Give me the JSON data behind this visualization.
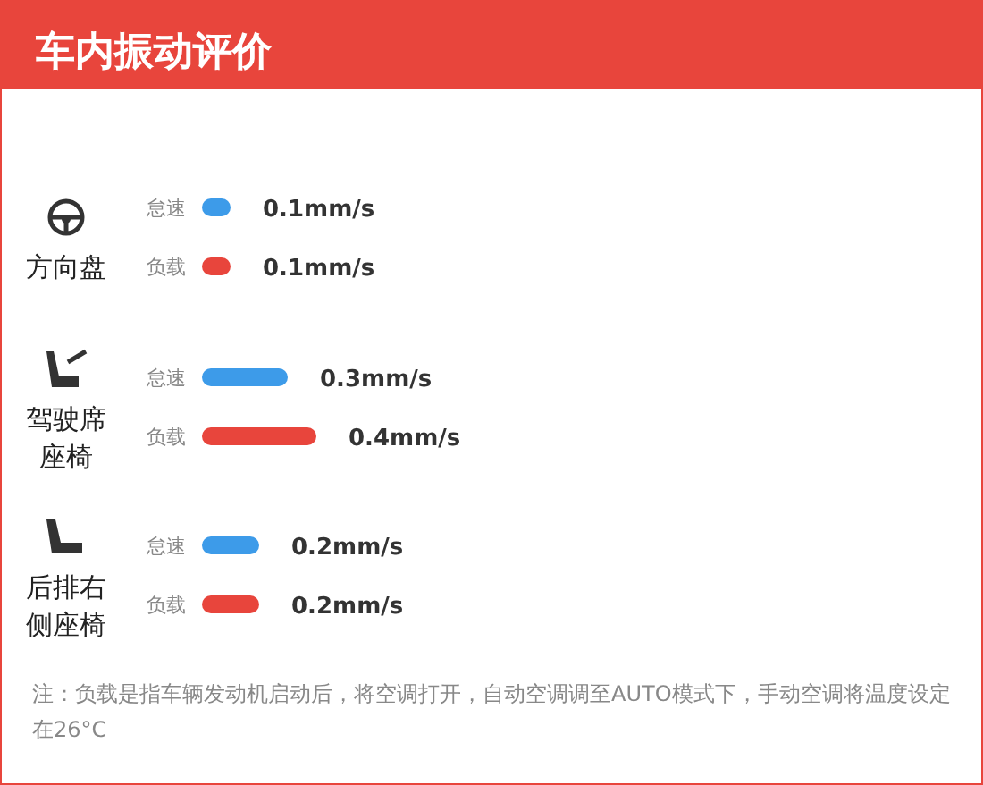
{
  "chart_data": {
    "type": "bar",
    "orientation": "horizontal",
    "title": "车内振动评价",
    "categories": [
      "方向盘",
      "驾驶席座椅",
      "后排右侧座椅"
    ],
    "series": [
      {
        "name": "怠速",
        "color": "#3d9be9",
        "values": [
          0.1,
          0.3,
          0.2
        ],
        "value_labels": [
          "0.1mm/s",
          "0.3mm/s",
          "0.2mm/s"
        ]
      },
      {
        "name": "负载",
        "color": "#e8453c",
        "values": [
          0.1,
          0.4,
          0.2
        ],
        "value_labels": [
          "0.1mm/s",
          "0.4mm/s",
          "0.2mm/s"
        ]
      }
    ],
    "annotations": [
      "注：负载是指车辆发动机启动后，将空调打开，自动空调调至AUTO模式下，手动空调将温度设定在26°C"
    ]
  }
}
